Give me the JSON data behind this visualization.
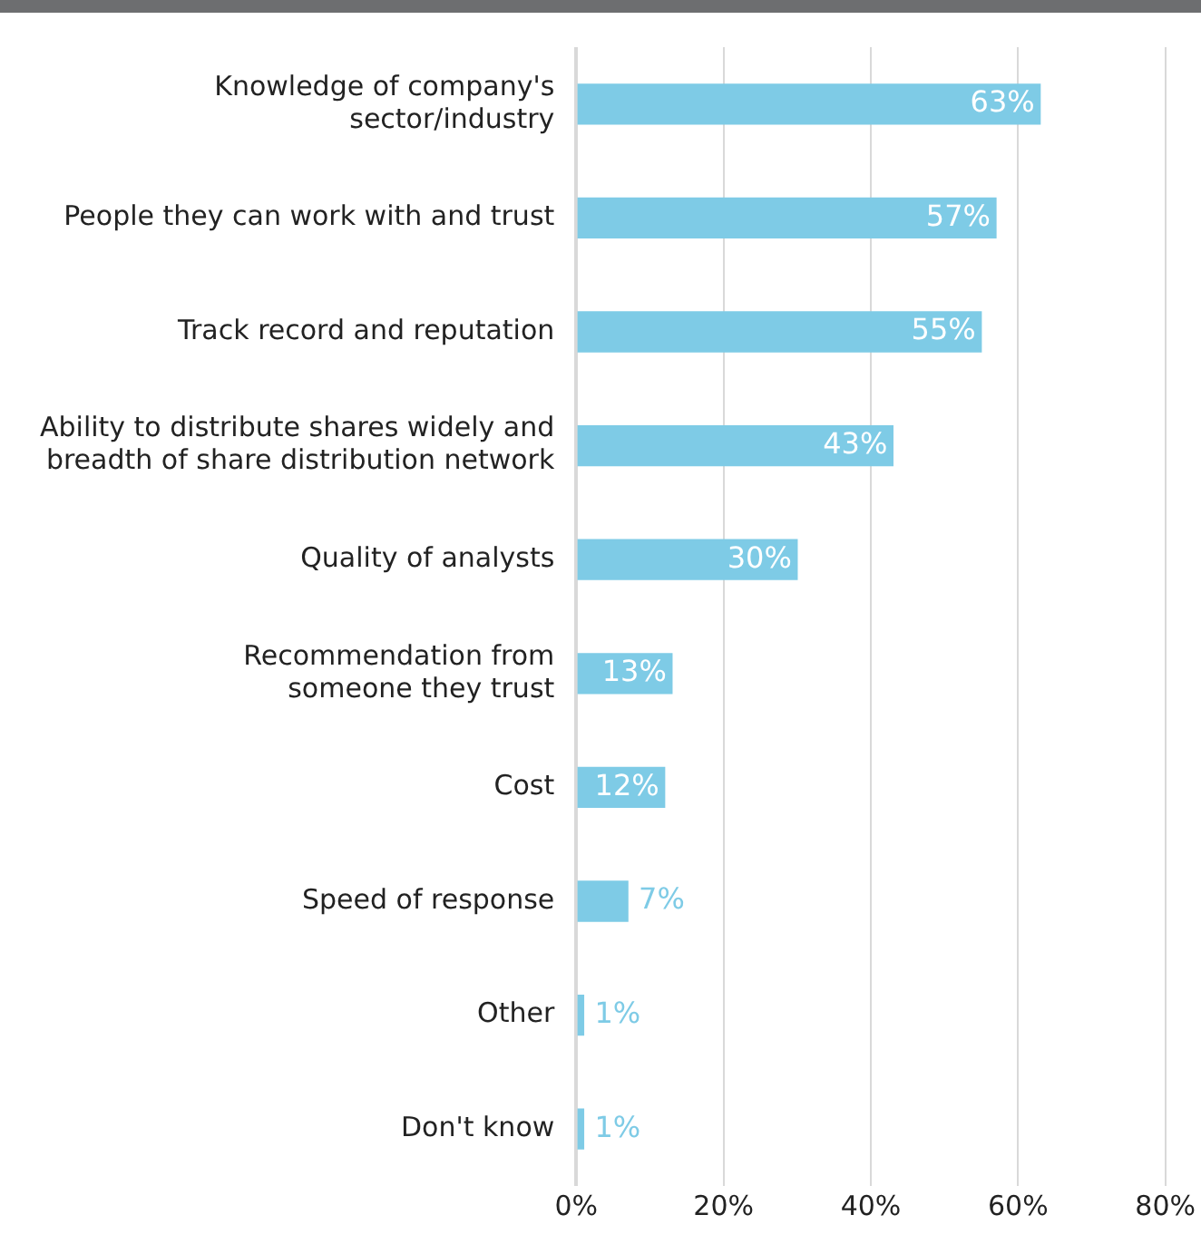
{
  "chart_data": {
    "type": "bar",
    "orientation": "horizontal",
    "categories": [
      "Knowledge of company's\nsector/industry",
      "People they can work with and trust",
      "Track record and reputation",
      "Ability to distribute shares widely and\nbreadth of share distribution network",
      "Quality of analysts",
      "Recommendation from\nsomeone they trust",
      "Cost",
      "Speed of response",
      "Other",
      "Don't know"
    ],
    "values": [
      63,
      57,
      55,
      43,
      30,
      13,
      12,
      7,
      1,
      1
    ],
    "value_labels": [
      "63%",
      "57%",
      "55%",
      "43%",
      "30%",
      "13%",
      "12%",
      "7%",
      "1%",
      "1%"
    ],
    "color": "#7ecbe6",
    "xlim": [
      0,
      80
    ],
    "xticks": [
      {
        "value": 0,
        "label": "0%"
      },
      {
        "value": 20,
        "label": "20%"
      },
      {
        "value": 40,
        "label": "40%"
      },
      {
        "value": 60,
        "label": "60%"
      },
      {
        "value": 80,
        "label": "80%"
      }
    ],
    "grid": "x",
    "legend": false
  }
}
